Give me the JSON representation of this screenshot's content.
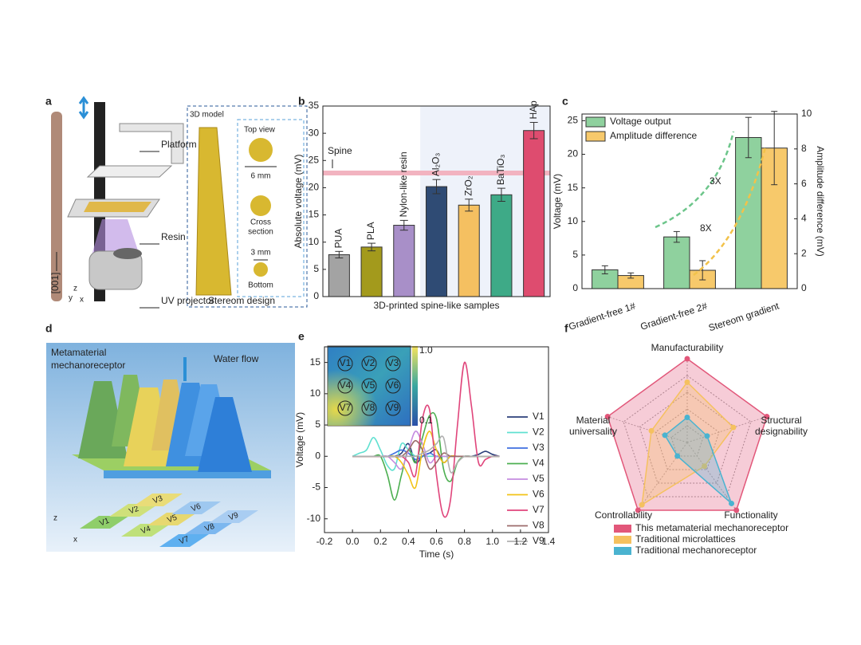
{
  "panel_labels": [
    "a",
    "b",
    "c",
    "d",
    "e",
    "f"
  ],
  "illustrations": {
    "a": {
      "labels": [
        "Platform",
        "Resin",
        "UV projector"
      ],
      "direction": "[001]",
      "inset_title": "3D model",
      "top_view": "Top view",
      "top_size": "6 mm",
      "cross": [
        "Cross",
        "section"
      ],
      "bottom_size": "3 mm",
      "bottom": "Bottom",
      "caption": "Stereom design",
      "axes": [
        "x",
        "y",
        "z"
      ]
    },
    "d": {
      "title": [
        "Metamaterial",
        "mechanoreceptor"
      ],
      "flow": "Water flow",
      "tiles": [
        "V1",
        "V2",
        "V3",
        "V4",
        "V5",
        "V6",
        "V7",
        "V8",
        "V9"
      ],
      "axes": [
        "z",
        "x"
      ]
    }
  },
  "chart_data": [
    {
      "type": "bar",
      "ylabel": "Absolute voltage (mV)",
      "xlabel": "3D-printed spine-like samples",
      "categories": [
        "PUA",
        "PLA",
        "Nylon-like resin",
        "Al₂O₃",
        "ZrO₂",
        "BaTiO₃",
        "HAp"
      ],
      "values": [
        7.7,
        9.1,
        13.1,
        20.2,
        16.8,
        18.7,
        30.5
      ],
      "errors": [
        0.6,
        0.7,
        0.9,
        1.3,
        1.1,
        1.2,
        1.5
      ],
      "colors": [
        "#a3a3a3",
        "#a39a1c",
        "#a88fc8",
        "#2f4b74",
        "#f5c061",
        "#3eaa87",
        "#de4c6f"
      ],
      "reference": {
        "label": "Spine",
        "value": 22.7,
        "color": "#f2b3c0"
      },
      "ylim": [
        0,
        35
      ],
      "yticks": [
        0,
        5,
        10,
        15,
        20,
        25,
        30,
        35
      ]
    },
    {
      "type": "bar",
      "ylabel": "Voltage (mV)",
      "y2label": "Amplitude difference (mV)",
      "categories": [
        "Gradient-free 1#",
        "Gradient-free 2#",
        "Stereom gradient"
      ],
      "series": [
        {
          "name": "Voltage output",
          "color": "#8fd19e",
          "values": [
            2.8,
            7.7,
            22.5
          ],
          "errors": [
            0.6,
            0.8,
            3.0
          ]
        },
        {
          "name": "Amplitude difference",
          "color": "#f7c96b",
          "axis": "y2",
          "values": [
            0.75,
            1.05,
            8.05
          ],
          "errors": [
            0.15,
            0.55,
            2.1
          ]
        }
      ],
      "annotations": [
        {
          "text": "3X",
          "color": "#6cc58a"
        },
        {
          "text": "8X",
          "color": "#f2c24a"
        }
      ],
      "ylim": [
        0,
        26
      ],
      "yticks": [
        0,
        5,
        10,
        15,
        20,
        25
      ],
      "y2lim": [
        0,
        10
      ],
      "y2ticks": [
        0,
        2,
        4,
        6,
        8,
        10
      ],
      "legend": "upper left"
    },
    {
      "type": "line",
      "xlabel": "Time (s)",
      "ylabel": "Voltage (mV)",
      "x": [
        0,
        0.05,
        0.1,
        0.15,
        0.2,
        0.25,
        0.3,
        0.35,
        0.4,
        0.45,
        0.5,
        0.55,
        0.6,
        0.65,
        0.7,
        0.75,
        0.8,
        0.85,
        0.9,
        0.95,
        1.0,
        1.05
      ],
      "series": [
        {
          "name": "V1",
          "color": "#2b3f7a",
          "values": [
            0,
            0,
            0,
            0,
            0,
            0,
            0,
            0.5,
            2,
            -1,
            0,
            0.5,
            1,
            -1,
            0,
            0,
            0,
            0,
            0.3,
            0.8,
            0.3,
            0
          ]
        },
        {
          "name": "V2",
          "color": "#5fe0d0",
          "values": [
            0,
            0.5,
            1,
            3,
            1,
            -1.5,
            -2,
            2,
            1,
            0,
            0,
            0,
            0,
            0,
            0,
            0,
            0,
            0,
            0,
            0,
            0,
            0
          ]
        },
        {
          "name": "V3",
          "color": "#3f6fe0",
          "values": [
            0,
            0,
            0,
            0,
            0,
            0,
            0.5,
            1,
            0.5,
            -0.5,
            0,
            0.5,
            0,
            0,
            0,
            0,
            0,
            0,
            0,
            0,
            0,
            0
          ]
        },
        {
          "name": "V4",
          "color": "#4caf50",
          "values": [
            0,
            0,
            0,
            0,
            0,
            -3,
            -7,
            -3,
            1,
            -1,
            3,
            6.5,
            6,
            -2,
            -4,
            -1,
            0,
            0,
            0,
            0,
            0,
            0
          ]
        },
        {
          "name": "V5",
          "color": "#c58be0",
          "values": [
            0,
            0,
            0,
            0,
            0,
            0,
            -1,
            -2,
            1,
            4,
            2,
            -1,
            0,
            0,
            0,
            0,
            0,
            0,
            0,
            0,
            0,
            0
          ]
        },
        {
          "name": "V6",
          "color": "#f2c318",
          "values": [
            0,
            0,
            0,
            0,
            0,
            0,
            0,
            -1,
            -3,
            -5,
            1,
            4,
            1,
            -1,
            0,
            0,
            0,
            0,
            0,
            0,
            0,
            0
          ]
        },
        {
          "name": "V7",
          "color": "#e0457b",
          "values": [
            0,
            0,
            0,
            0,
            0,
            0,
            0,
            0,
            -1,
            -3,
            6,
            7.5,
            -3,
            -9.5,
            -7,
            5,
            15,
            8,
            -1,
            -0.5,
            0,
            0
          ]
        },
        {
          "name": "V8",
          "color": "#9c6b6b",
          "values": [
            0,
            0,
            0,
            0,
            0,
            0,
            0,
            0,
            1,
            2.5,
            1,
            -2,
            -1,
            0.5,
            0,
            0,
            0,
            0,
            0,
            0,
            0,
            0
          ]
        },
        {
          "name": "V9",
          "color": "#b0b0b0",
          "values": [
            0,
            0,
            0,
            0,
            0,
            0,
            0,
            0,
            0,
            0,
            0.5,
            1,
            2,
            3,
            -2.5,
            -1,
            0,
            0,
            0,
            0,
            0,
            0
          ]
        }
      ],
      "inset": {
        "labels": [
          "V1",
          "V2",
          "V3",
          "V4",
          "V5",
          "V6",
          "V7",
          "V8",
          "V9"
        ],
        "colorbar_labels": [
          "1.0",
          "0.1"
        ]
      },
      "xlim": [
        -0.2,
        1.4
      ],
      "xticks": [
        -0.2,
        {
          "value": 0,
          "label": "0.0"
        },
        0.2,
        0.4,
        0.6,
        0.8,
        {
          "value": 1,
          "label": "1.0"
        },
        1.2,
        1.4
      ],
      "ylim": [
        -12.2,
        17.5
      ],
      "yticks": [
        -10,
        -5,
        0,
        5,
        10,
        15
      ],
      "legend": "right"
    },
    {
      "type": "radar",
      "axes": [
        "Manufacturability",
        "Structural designability",
        "Functionality",
        "Controllability",
        "Material universality"
      ],
      "series": [
        {
          "name": "This metamaterial mechanoreceptor",
          "color": "#e2577a",
          "values": [
            1,
            1,
            1,
            1,
            1
          ]
        },
        {
          "name": "Traditional microlattices",
          "color": "#f5c15f",
          "values": [
            0.72,
            0.58,
            0.35,
            0.92,
            0.45
          ]
        },
        {
          "name": "Traditional mechanoreceptor",
          "color": "#4ab3d0",
          "values": [
            0.3,
            0.25,
            0.9,
            0.2,
            0.28
          ]
        }
      ],
      "rlim": [
        0,
        1
      ],
      "rticks": [
        0.2,
        0.4,
        0.6,
        0.8,
        1
      ]
    }
  ]
}
